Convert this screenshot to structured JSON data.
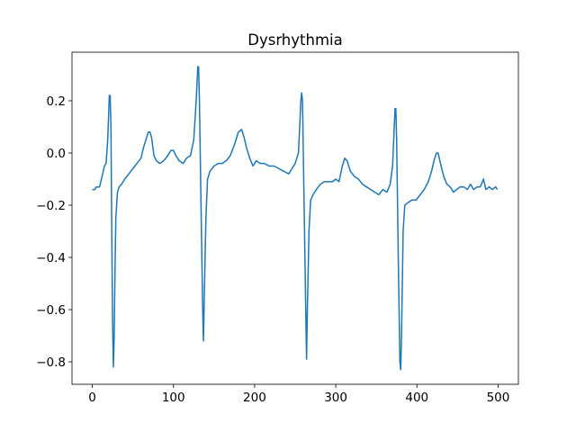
{
  "chart_data": {
    "type": "line",
    "title": "Dysrhythmia",
    "series": [
      {
        "color": "#1f77b4",
        "x": [
          0,
          3,
          5,
          9,
          12,
          15,
          17,
          19,
          21,
          22,
          23,
          24,
          25,
          26,
          27,
          28,
          29,
          31,
          33,
          36,
          40,
          45,
          50,
          55,
          60,
          63,
          66,
          69,
          71,
          73,
          76,
          79,
          83,
          88,
          93,
          97,
          100,
          103,
          107,
          112,
          116,
          121,
          125,
          128,
          130,
          131,
          132,
          134,
          136,
          137,
          138,
          140,
          142,
          145,
          150,
          155,
          160,
          165,
          170,
          175,
          180,
          184,
          187,
          190,
          194,
          198,
          202,
          207,
          212,
          218,
          224,
          230,
          236,
          242,
          246,
          250,
          254,
          257,
          258,
          259,
          261,
          263,
          264,
          265,
          267,
          269,
          272,
          276,
          281,
          286,
          291,
          296,
          300,
          304,
          308,
          311,
          314,
          318,
          323,
          328,
          333,
          338,
          343,
          348,
          353,
          358,
          363,
          367,
          370,
          373,
          374,
          375,
          377,
          379,
          380,
          381,
          383,
          385,
          389,
          394,
          399,
          404,
          409,
          414,
          418,
          421,
          424,
          426,
          429,
          433,
          437,
          441,
          445,
          449,
          453,
          458,
          462,
          466,
          470,
          474,
          478,
          482,
          485,
          489,
          493,
          497,
          499
        ],
        "values": [
          -0.14,
          -0.14,
          -0.13,
          -0.13,
          -0.09,
          -0.05,
          -0.04,
          0.05,
          0.22,
          0.22,
          0.1,
          -0.3,
          -0.65,
          -0.82,
          -0.7,
          -0.45,
          -0.25,
          -0.15,
          -0.13,
          -0.12,
          -0.1,
          -0.08,
          -0.06,
          -0.04,
          -0.02,
          0.02,
          0.05,
          0.08,
          0.08,
          0.06,
          -0.01,
          -0.03,
          -0.04,
          -0.03,
          -0.01,
          0.01,
          0.01,
          -0.01,
          -0.03,
          -0.04,
          -0.02,
          -0.01,
          0.05,
          0.2,
          0.33,
          0.33,
          0.2,
          -0.2,
          -0.6,
          -0.72,
          -0.55,
          -0.25,
          -0.1,
          -0.07,
          -0.05,
          -0.04,
          -0.04,
          -0.03,
          -0.01,
          0.03,
          0.08,
          0.09,
          0.06,
          0.02,
          -0.02,
          -0.05,
          -0.03,
          -0.04,
          -0.04,
          -0.05,
          -0.05,
          -0.06,
          -0.07,
          -0.08,
          -0.06,
          -0.04,
          0.0,
          0.2,
          0.23,
          0.2,
          -0.2,
          -0.6,
          -0.79,
          -0.6,
          -0.3,
          -0.18,
          -0.16,
          -0.14,
          -0.12,
          -0.11,
          -0.11,
          -0.11,
          -0.1,
          -0.11,
          -0.05,
          -0.02,
          -0.03,
          -0.07,
          -0.09,
          -0.1,
          -0.12,
          -0.13,
          -0.14,
          -0.15,
          -0.16,
          -0.14,
          -0.15,
          -0.12,
          -0.05,
          0.17,
          0.17,
          0.05,
          -0.4,
          -0.8,
          -0.83,
          -0.7,
          -0.3,
          -0.2,
          -0.19,
          -0.18,
          -0.18,
          -0.16,
          -0.14,
          -0.11,
          -0.07,
          -0.03,
          0.0,
          0.0,
          -0.04,
          -0.09,
          -0.12,
          -0.13,
          -0.15,
          -0.14,
          -0.13,
          -0.13,
          -0.14,
          -0.12,
          -0.14,
          -0.13,
          -0.13,
          -0.1,
          -0.14,
          -0.13,
          -0.14,
          -0.13,
          -0.14
        ]
      }
    ],
    "xlim": [
      -25,
      525
    ],
    "ylim": [
      -0.886,
      0.386
    ],
    "xticks": [
      0,
      100,
      200,
      300,
      400,
      500
    ],
    "yticks": [
      {
        "value": -0.8,
        "label": "−0.8"
      },
      {
        "value": -0.6,
        "label": "−0.6"
      },
      {
        "value": -0.4,
        "label": "−0.4"
      },
      {
        "value": -0.2,
        "label": "−0.2"
      },
      {
        "value": 0,
        "label": "0.0"
      },
      0.2
    ]
  }
}
